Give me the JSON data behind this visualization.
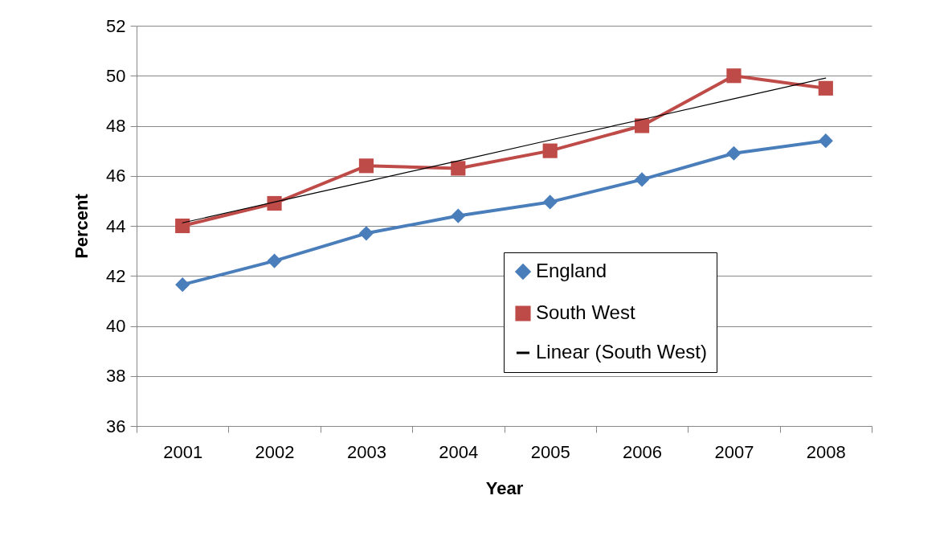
{
  "chart_data": {
    "type": "line",
    "xlabel": "Year",
    "ylabel": "Percent",
    "categories": [
      "2001",
      "2002",
      "2003",
      "2004",
      "2005",
      "2006",
      "2007",
      "2008"
    ],
    "series": [
      {
        "name": "England",
        "color": "#4a7ebb",
        "marker": "diamond",
        "values": [
          41.65,
          42.6,
          43.7,
          44.4,
          44.95,
          45.85,
          46.9,
          47.4
        ]
      },
      {
        "name": "South West",
        "color": "#be4b48",
        "marker": "square",
        "values": [
          44.0,
          44.9,
          46.4,
          46.3,
          47.0,
          48.0,
          50.0,
          49.5
        ]
      },
      {
        "name": "Linear (South West)",
        "color": "#000000",
        "marker": "none",
        "values": [
          44.12,
          44.95,
          45.77,
          46.6,
          47.43,
          48.25,
          49.08,
          49.91
        ]
      }
    ],
    "ylim": [
      36,
      52
    ],
    "yticks": [
      36,
      38,
      40,
      42,
      44,
      46,
      48,
      50,
      52
    ],
    "grid": "y",
    "legend": "bottom right"
  }
}
